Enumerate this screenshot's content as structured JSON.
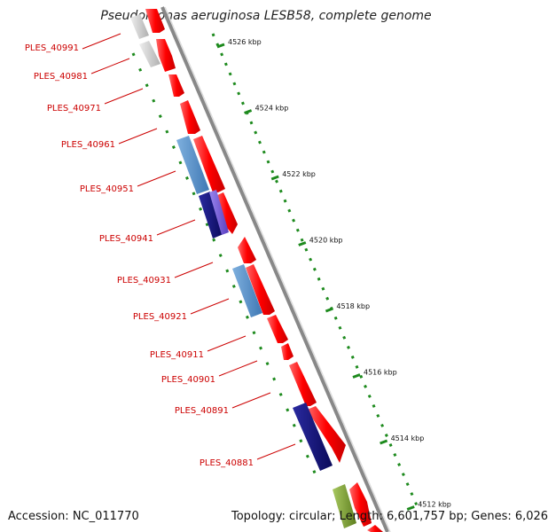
{
  "title": "Pseudomonas aeruginosa LESB58, complete genome",
  "accession_text": "Accession: NC_011770",
  "topology_text": "Topology: circular; Length: 6,601,757 bp; Genes: 6,026",
  "colors": {
    "gene_label": "#cc0000",
    "forward_gene": "#ff0000",
    "gene_blue": "#4f8fc8",
    "gene_navy": "#14147a",
    "gene_purple": "#6a4fd0",
    "gene_grey": "#c8c8c8",
    "gene_olive": "#7fa030",
    "ruler_dots": "#1d8a1d",
    "backbone": "#888888"
  },
  "gene_labels": [
    "PLES_40991",
    "PLES_40981",
    "PLES_40971",
    "PLES_40961",
    "PLES_40951",
    "PLES_40941",
    "PLES_40931",
    "PLES_40921",
    "PLES_40911",
    "PLES_40901",
    "PLES_40891",
    "PLES_40881"
  ],
  "scale_labels": [
    "4526 kbp",
    "4524 kbp",
    "4522 kbp",
    "4520 kbp",
    "4518 kbp",
    "4516 kbp",
    "4514 kbp",
    "4512 kbp"
  ]
}
